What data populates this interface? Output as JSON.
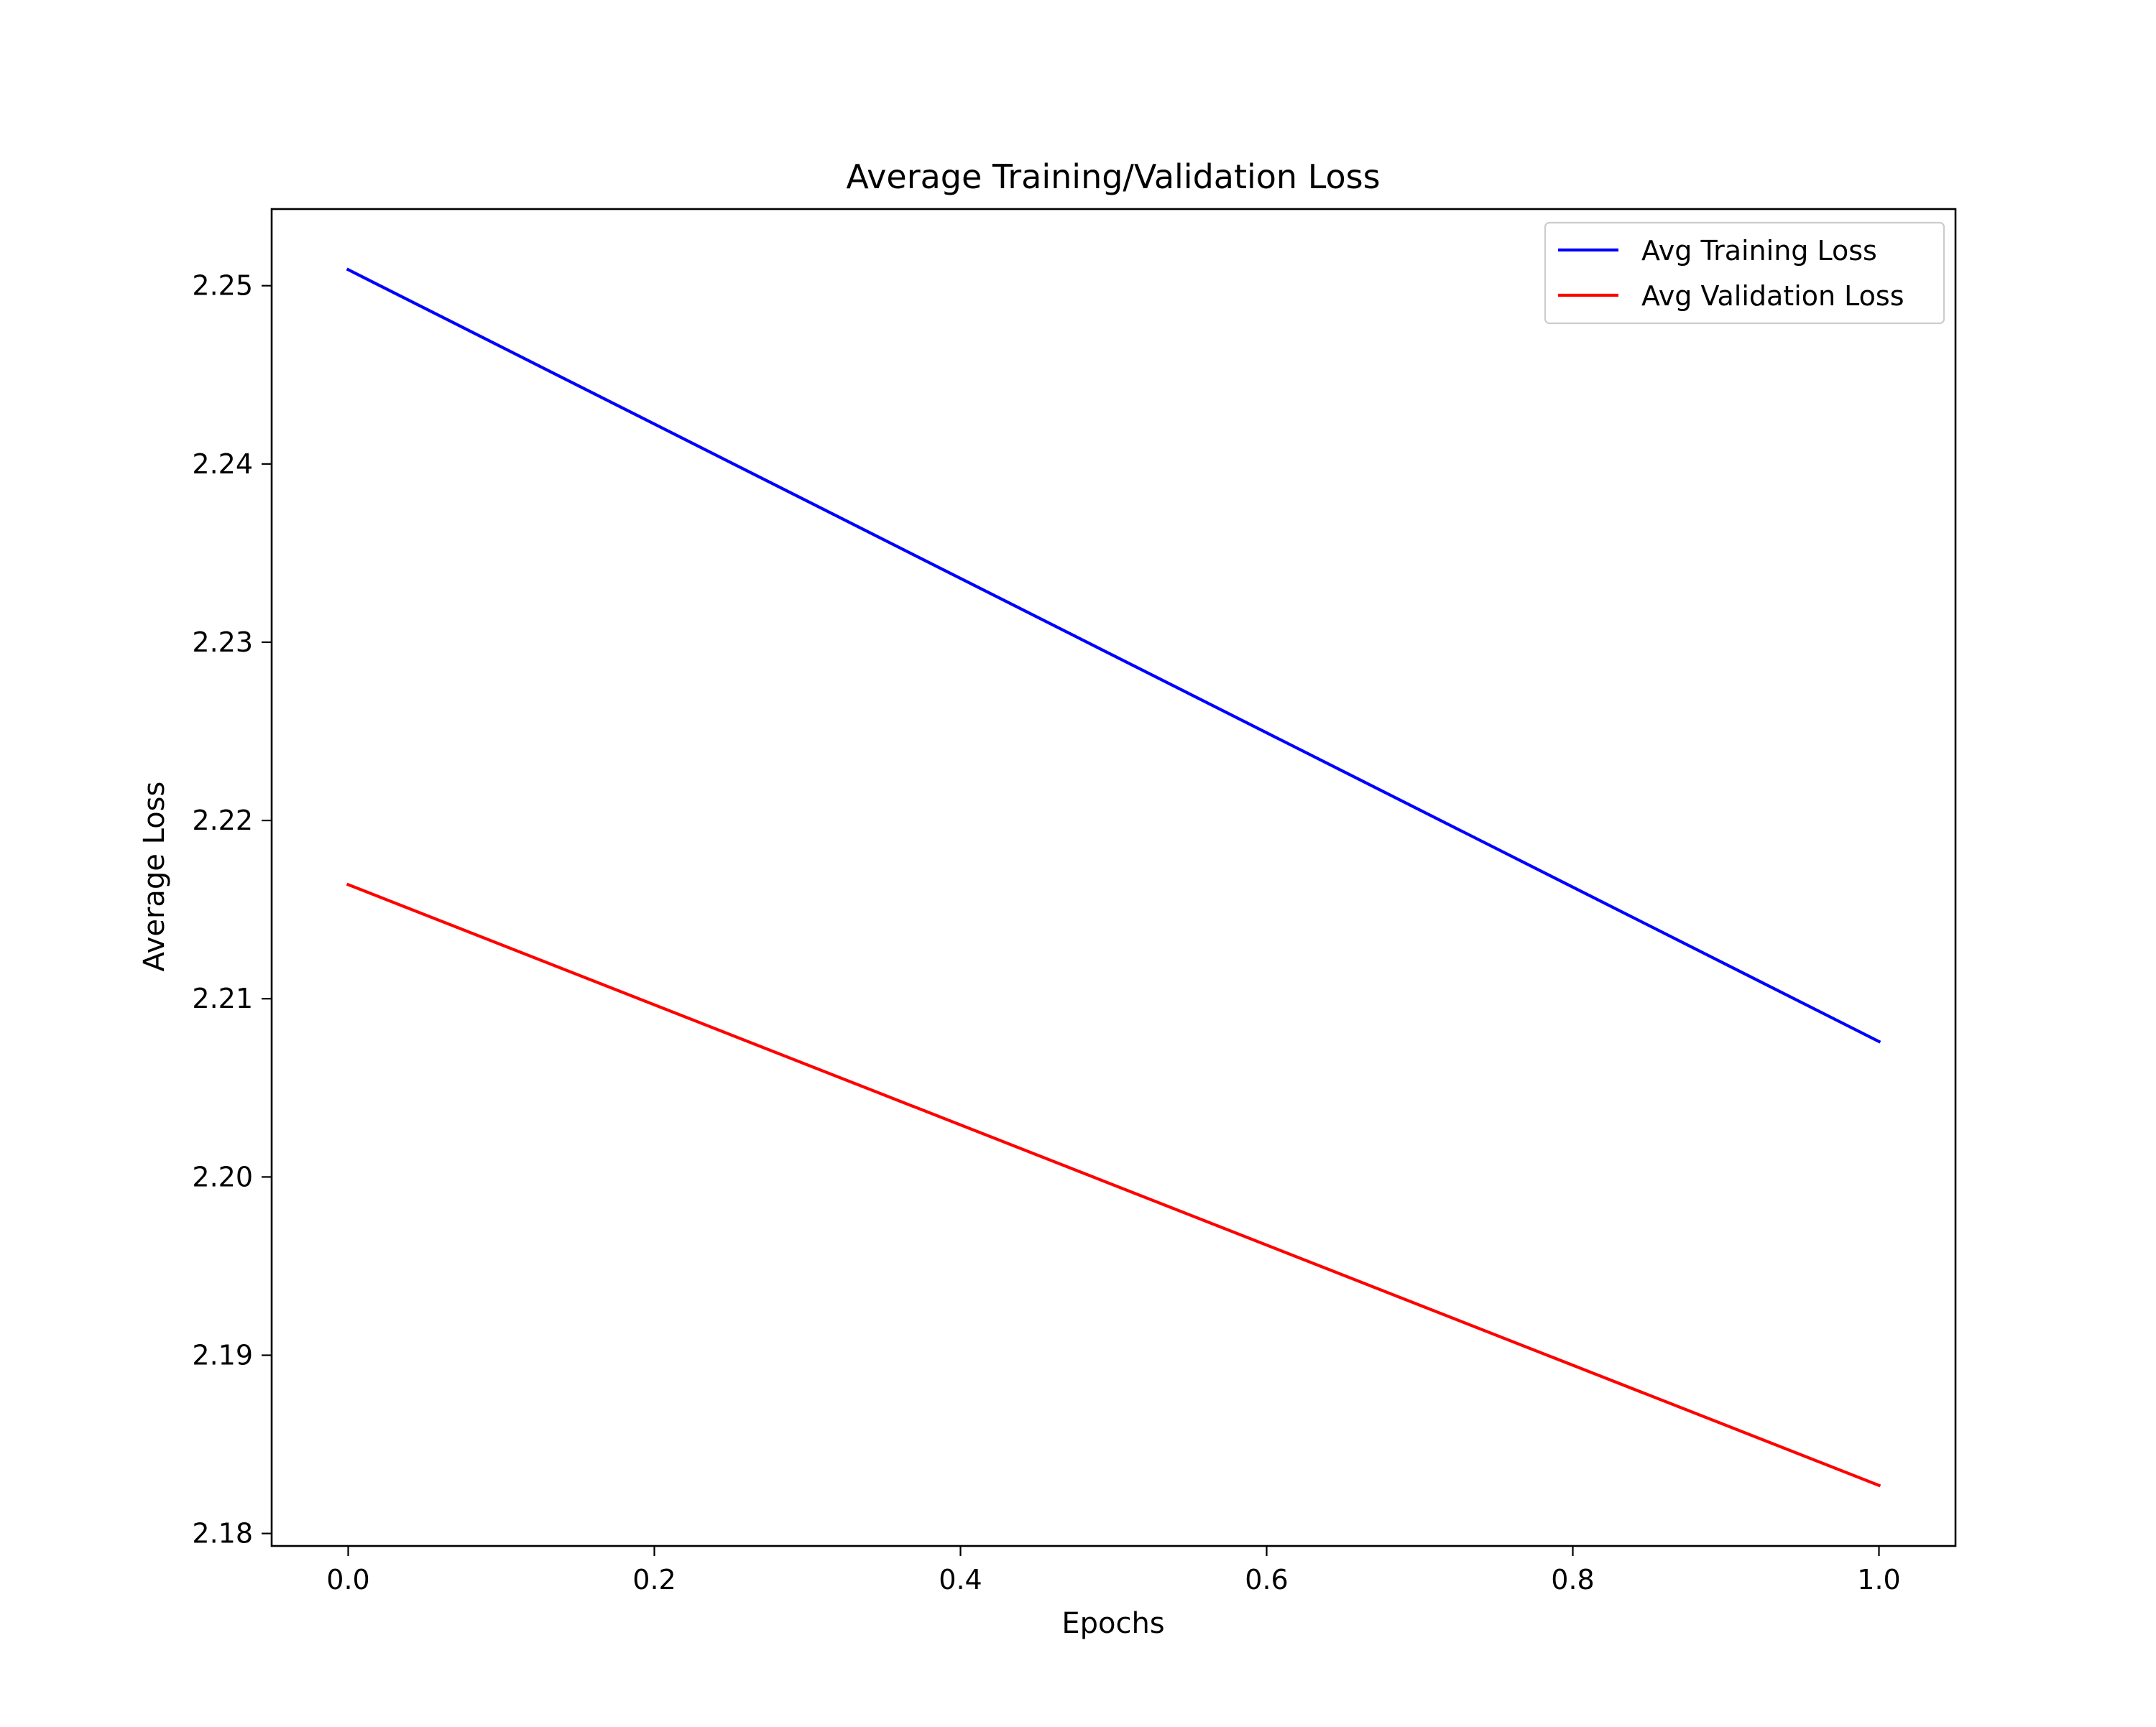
{
  "chart_data": {
    "type": "line",
    "title": "Average Training/Validation Loss",
    "xlabel": "Epochs",
    "ylabel": "Average Loss",
    "xlim": [
      -0.05,
      1.05
    ],
    "ylim": [
      2.1793,
      2.2543
    ],
    "xticks": [
      "0.0",
      "0.2",
      "0.4",
      "0.6",
      "0.8",
      "1.0"
    ],
    "yticks": [
      "2.18",
      "2.19",
      "2.20",
      "2.21",
      "2.22",
      "2.23",
      "2.24",
      "2.25"
    ],
    "grid": false,
    "legend_position": "upper right",
    "x": [
      0,
      1
    ],
    "series": [
      {
        "name": "Avg Training Loss",
        "values": [
          2.2509,
          2.2076
        ],
        "color": "#0000ff"
      },
      {
        "name": "Avg Validation Loss",
        "values": [
          2.2164,
          2.1827
        ],
        "color": "#ff0000"
      }
    ]
  }
}
